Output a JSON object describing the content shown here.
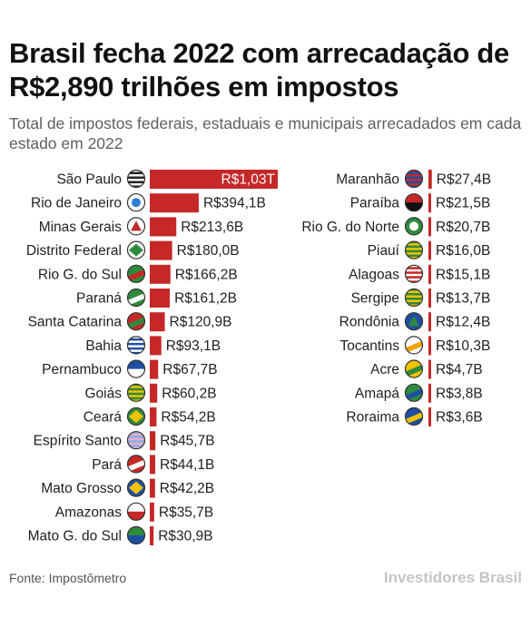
{
  "title": "Brasil fecha 2022 com arrecadação de R$2,890 trilhões em impostos",
  "subtitle": "Total de impostos federais, estaduais e municipais arrecadados em cada estado em 2022",
  "source": "Fonte: Impostômetro",
  "brand": "Investidores Brasil",
  "colors": {
    "bar": "#c62828",
    "text": "#1f1f1f",
    "subtitle": "#5f5f5f"
  },
  "chart_data": {
    "type": "bar",
    "orientation": "horizontal",
    "unit": "R$ bilhões",
    "categories": [
      "São Paulo",
      "Rio de Janeiro",
      "Minas Gerais",
      "Distrito Federal",
      "Rio G. do Sul",
      "Paraná",
      "Santa Catarina",
      "Bahia",
      "Pernambuco",
      "Goiás",
      "Ceará",
      "Espírito Santo",
      "Pará",
      "Mato Grosso",
      "Amazonas",
      "Mato G. do Sul",
      "Maranhão",
      "Paraíba",
      "Rio G. do Norte",
      "Piauí",
      "Alagoas",
      "Sergipe",
      "Rondônia",
      "Tocantins",
      "Acre",
      "Amapá",
      "Roraima"
    ],
    "values": [
      1030,
      394.1,
      213.6,
      180.0,
      166.2,
      161.2,
      120.9,
      93.1,
      67.7,
      60.2,
      54.2,
      45.7,
      44.1,
      42.2,
      35.7,
      30.9,
      27.4,
      21.5,
      20.7,
      16.0,
      15.1,
      13.7,
      12.4,
      10.3,
      4.7,
      3.8,
      3.6
    ],
    "value_labels": [
      "R$1,03T",
      "R$394,1B",
      "R$213,6B",
      "R$180,0B",
      "R$166,2B",
      "R$161,2B",
      "R$120,9B",
      "R$93,1B",
      "R$67,7B",
      "R$60,2B",
      "R$54,2B",
      "R$45,7B",
      "R$44,1B",
      "R$42,2B",
      "R$35,7B",
      "R$30,9B",
      "R$27,4B",
      "R$21,5B",
      "R$20,7B",
      "R$16,0B",
      "R$15,1B",
      "R$13,7B",
      "R$12,4B",
      "R$10,3B",
      "R$4,7B",
      "R$3,8B",
      "R$3,6B"
    ],
    "flag_icons": [
      "flag-sao-paulo-icon",
      "flag-rio-de-janeiro-icon",
      "flag-minas-gerais-icon",
      "flag-distrito-federal-icon",
      "flag-rio-grande-do-sul-icon",
      "flag-parana-icon",
      "flag-santa-catarina-icon",
      "flag-bahia-icon",
      "flag-pernambuco-icon",
      "flag-goias-icon",
      "flag-ceara-icon",
      "flag-espirito-santo-icon",
      "flag-para-icon",
      "flag-mato-grosso-icon",
      "flag-amazonas-icon",
      "flag-mato-grosso-do-sul-icon",
      "flag-maranhao-icon",
      "flag-paraiba-icon",
      "flag-rio-grande-do-norte-icon",
      "flag-piaui-icon",
      "flag-alagoas-icon",
      "flag-sergipe-icon",
      "flag-rondonia-icon",
      "flag-tocantins-icon",
      "flag-acre-icon",
      "flag-amapa-icon",
      "flag-roraima-icon"
    ],
    "columns": 2,
    "xlabel": "",
    "ylabel": "",
    "grid": false,
    "legend": "none"
  }
}
